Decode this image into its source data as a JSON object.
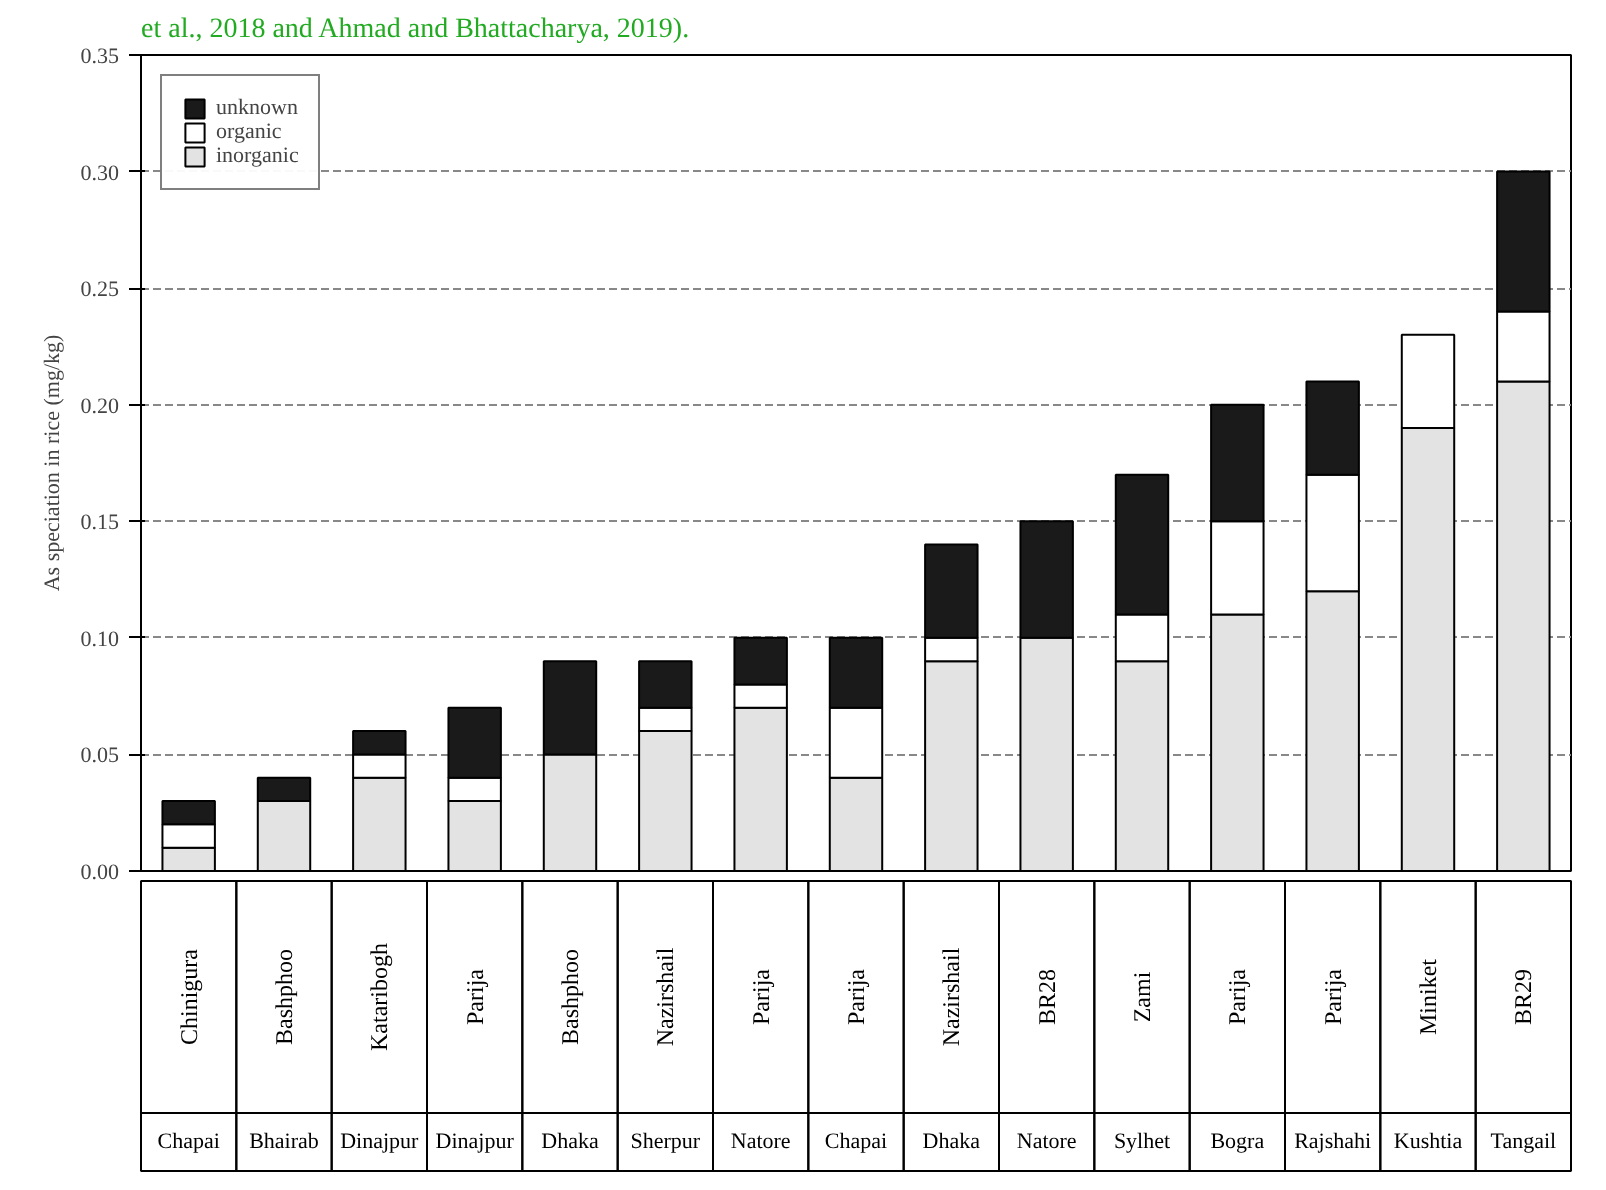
{
  "chart_data": {
    "type": "bar",
    "stacked": true,
    "ylabel": "As speciation in rice (mg/kg)",
    "annotations": [
      "et al., 2018 and Ahmad and Bhattacharya, 2019)."
    ],
    "categories": [
      "Chinigura\nChapai",
      "Bashphoo\nBhairab",
      "Kataribogh\nDinajpur",
      "Parija\nDinajpur",
      "Bashphoo\nDhaka",
      "Nazirshail\nSherpur",
      "Parija\nNatore",
      "Parija\nChapai",
      "Nazirshail\nDhaka",
      "BR28\nNatore",
      "Zami\nSylhet",
      "Parija\nBogra",
      "Parija\nRajshahi",
      "Miniket\nKushtia",
      "BR29\nTangail"
    ],
    "series": [
      {
        "name": "inorganic",
        "color": "#e3e3e3",
        "values": [
          0.01,
          0.03,
          0.04,
          0.03,
          0.05,
          0.06,
          0.07,
          0.04,
          0.09,
          0.1,
          0.09,
          0.11,
          0.12,
          0.19,
          0.21
        ]
      },
      {
        "name": "organic",
        "color": "#ffffff",
        "values": [
          0.01,
          0,
          0.01,
          0.01,
          0,
          0.01,
          0.01,
          0.03,
          0.01,
          0,
          0.02,
          0.04,
          0.05,
          0.04,
          0.03
        ]
      },
      {
        "name": "unknown",
        "color": "#1a1a1a",
        "values": [
          0.01,
          0.01,
          0.01,
          0.03,
          0.04,
          0.02,
          0.02,
          0.03,
          0.04,
          0.05,
          0.06,
          0.05,
          0.04,
          0,
          0.06
        ]
      }
    ],
    "ylim": [
      0,
      0.35
    ],
    "yticks": [
      {
        "value": 0,
        "label": "0.00"
      },
      {
        "value": 0.05,
        "label": "0.05"
      },
      {
        "value": 0.1,
        "label": "0.10"
      },
      {
        "value": 0.15,
        "label": "0.15"
      },
      {
        "value": 0.2,
        "label": "0.20"
      },
      {
        "value": 0.25,
        "label": "0.25"
      },
      {
        "value": 0.3,
        "label": "0.30"
      },
      {
        "value": 0.35,
        "label": "0.35"
      }
    ],
    "grid": "y",
    "legend": "top left"
  }
}
